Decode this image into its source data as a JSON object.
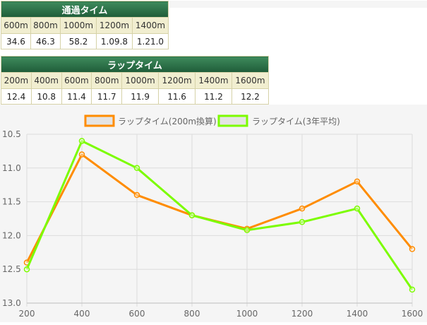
{
  "passage_table": {
    "title": "通過タイム",
    "headers": [
      "600m",
      "800m",
      "1000m",
      "1200m",
      "1400m"
    ],
    "values": [
      "34.6",
      "46.3",
      "58.2",
      "1.09.8",
      "1.21.0"
    ]
  },
  "lap_table": {
    "title": "ラップタイム",
    "headers": [
      "200m",
      "400m",
      "600m",
      "800m",
      "1000m",
      "1200m",
      "1400m",
      "1600m"
    ],
    "values": [
      "12.4",
      "10.8",
      "11.4",
      "11.7",
      "11.9",
      "11.6",
      "11.2",
      "12.2"
    ]
  },
  "chart_data": {
    "type": "line",
    "x": [
      200,
      400,
      600,
      800,
      1000,
      1200,
      1400,
      1600
    ],
    "x_tick_labels": [
      "200",
      "400",
      "600",
      "800",
      "1000",
      "1200",
      "1400",
      "1600"
    ],
    "y_tick_labels": [
      "10.5",
      "11.0",
      "11.5",
      "12.0",
      "12.5",
      "13.0"
    ],
    "y_ticks": [
      10.5,
      11.0,
      11.5,
      12.0,
      12.5,
      13.0
    ],
    "ylim": [
      10.5,
      13.0
    ],
    "xlim": [
      200,
      1600
    ],
    "y_reversed": true,
    "grid": true,
    "legend_position": "top",
    "series": [
      {
        "name": "ラップタイム(200m換算)",
        "color": "#ff8c00",
        "values": [
          12.4,
          10.8,
          11.4,
          11.7,
          11.9,
          11.6,
          11.2,
          12.2
        ]
      },
      {
        "name": "ラップタイム(3年平均)",
        "color": "#7cfc00",
        "values": [
          12.5,
          10.6,
          11.0,
          11.7,
          11.92,
          11.8,
          11.6,
          12.8
        ]
      }
    ]
  }
}
